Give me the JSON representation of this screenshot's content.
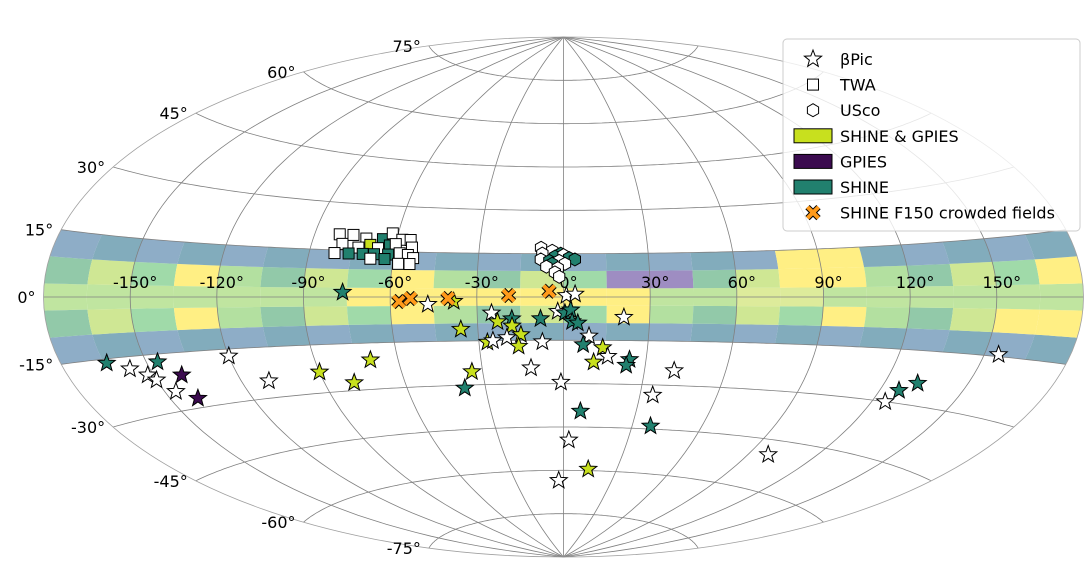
{
  "chart_data": {
    "type": "scatter",
    "projection": "aitoff-galactic",
    "galactic_plane_band_lat": [
      -15,
      15
    ],
    "band_colormap": "viridis (translucent)",
    "grid": true,
    "legend_position": "top-right",
    "longitude_ticks": [
      "-150°",
      "-120°",
      "-90°",
      "-60°",
      "-30°",
      "0°",
      "30°",
      "60°",
      "90°",
      "120°",
      "150°"
    ],
    "latitude_ticks": [
      "75°",
      "60°",
      "45°",
      "30°",
      "15°",
      "0°",
      "-15°",
      "-30°",
      "-45°",
      "-60°",
      "-75°"
    ],
    "colors": {
      "shine_gpies": "#c8e01e",
      "gpies": "#3b0b4f",
      "shine": "#21806e",
      "none": "#ffffff",
      "crowded": "#ff9a1a"
    },
    "legend": [
      {
        "label": "βPic",
        "marker": "star",
        "color": "none"
      },
      {
        "label": "TWA",
        "marker": "square",
        "color": "none"
      },
      {
        "label": "USco",
        "marker": "hexagon",
        "color": "none"
      },
      {
        "label": "SHINE & GPIES",
        "marker": "patch",
        "color": "shine_gpies"
      },
      {
        "label": "GPIES",
        "marker": "patch",
        "color": "gpies"
      },
      {
        "label": "SHINE",
        "marker": "patch",
        "color": "shine"
      },
      {
        "label": "SHINE F150 crowded fields",
        "marker": "x",
        "color": "crowded"
      }
    ],
    "series": [
      {
        "name": "βPic",
        "marker": "star",
        "points": [
          {
            "lon": -164,
            "lat": -16,
            "survey": "shine"
          },
          {
            "lon": -157,
            "lat": -18,
            "survey": "none"
          },
          {
            "lon": -152,
            "lat": -20,
            "survey": "none"
          },
          {
            "lon": -146,
            "lat": -17,
            "survey": "shine"
          },
          {
            "lon": -150,
            "lat": -21.5,
            "survey": "none"
          },
          {
            "lon": -140,
            "lat": -21,
            "survey": "gpies"
          },
          {
            "lon": -146,
            "lat": -25,
            "survey": "none"
          },
          {
            "lon": -140,
            "lat": -27.5,
            "survey": "gpies"
          },
          {
            "lon": -120,
            "lat": -17,
            "survey": "none"
          },
          {
            "lon": -110,
            "lat": -25,
            "survey": "none"
          },
          {
            "lon": -90,
            "lat": -23.5,
            "survey": "shine_gpies"
          },
          {
            "lon": -70,
            "lat": -20.5,
            "survey": "shine_gpies"
          },
          {
            "lon": -79,
            "lat": -27.5,
            "survey": "shine_gpies"
          },
          {
            "lon": -76.5,
            "lat": 1.5,
            "survey": "shine"
          },
          {
            "lon": -47,
            "lat": -2.5,
            "survey": "none"
          },
          {
            "lon": -38,
            "lat": -1.5,
            "survey": "shine_gpies"
          },
          {
            "lon": -36,
            "lat": -11,
            "survey": "shine_gpies"
          },
          {
            "lon": -25,
            "lat": -5.5,
            "survey": "none"
          },
          {
            "lon": -23,
            "lat": -8.5,
            "survey": "shine_gpies"
          },
          {
            "lon": -18,
            "lat": -7.5,
            "survey": "shine"
          },
          {
            "lon": -18,
            "lat": -10,
            "survey": "shine_gpies"
          },
          {
            "lon": -27,
            "lat": -15.5,
            "survey": "shine_gpies"
          },
          {
            "lon": -25,
            "lat": -15,
            "survey": "none"
          },
          {
            "lon": -20,
            "lat": -14,
            "survey": "none"
          },
          {
            "lon": -15,
            "lat": -13,
            "survey": "shine_gpies"
          },
          {
            "lon": -16,
            "lat": -17,
            "survey": "shine_gpies"
          },
          {
            "lon": -8,
            "lat": -7.5,
            "survey": "shine"
          },
          {
            "lon": -7.5,
            "lat": -15.5,
            "survey": "none"
          },
          {
            "lon": -2,
            "lat": -5,
            "survey": "none"
          },
          {
            "lon": 0.5,
            "lat": -5.5,
            "survey": "shine"
          },
          {
            "lon": 2.5,
            "lat": -4.5,
            "survey": "shine"
          },
          {
            "lon": 1,
            "lat": 0.5,
            "survey": "none"
          },
          {
            "lon": 4,
            "lat": 1,
            "survey": "none"
          },
          {
            "lon": 3,
            "lat": -8.5,
            "survey": "shine"
          },
          {
            "lon": 5,
            "lat": -9,
            "survey": "shine"
          },
          {
            "lon": 21,
            "lat": -7,
            "survey": "none"
          },
          {
            "lon": 9,
            "lat": -13.5,
            "survey": "none"
          },
          {
            "lon": 7,
            "lat": -16.5,
            "survey": "shine"
          },
          {
            "lon": 14,
            "lat": -17.5,
            "survey": "shine_gpies"
          },
          {
            "lon": 16,
            "lat": -20.5,
            "survey": "none"
          },
          {
            "lon": 11,
            "lat": -22.5,
            "survey": "shine_gpies"
          },
          {
            "lon": 24,
            "lat": -21.5,
            "survey": "shine"
          },
          {
            "lon": 23,
            "lat": -23.5,
            "survey": "shine"
          },
          {
            "lon": -34,
            "lat": -25.5,
            "survey": "shine_gpies"
          },
          {
            "lon": -38,
            "lat": -31,
            "survey": "shine"
          },
          {
            "lon": -12,
            "lat": -24.5,
            "survey": "none"
          },
          {
            "lon": -1,
            "lat": -29.5,
            "survey": "none"
          },
          {
            "lon": 41,
            "lat": -25,
            "survey": "none"
          },
          {
            "lon": 35,
            "lat": -33.5,
            "survey": "none"
          },
          {
            "lon": 7,
            "lat": -39.5,
            "survey": "shine"
          },
          {
            "lon": 38,
            "lat": -44,
            "survey": "shine"
          },
          {
            "lon": 2.5,
            "lat": -49.5,
            "survey": "none"
          },
          {
            "lon": 14,
            "lat": -59.5,
            "survey": "shine_gpies"
          },
          {
            "lon": -3,
            "lat": -63.5,
            "survey": "none"
          },
          {
            "lon": 99,
            "lat": -49.5,
            "survey": "none"
          },
          {
            "lon": 127,
            "lat": -26.5,
            "survey": "shine"
          },
          {
            "lon": 132,
            "lat": -24,
            "survey": "shine"
          },
          {
            "lon": 125,
            "lat": -30,
            "survey": "none"
          },
          {
            "lon": 155,
            "lat": -14.5,
            "survey": "none"
          }
        ]
      },
      {
        "name": "TWA",
        "marker": "square",
        "points": [
          {
            "lon": -81,
            "lat": 20,
            "survey": "none"
          },
          {
            "lon": -76,
            "lat": 20,
            "survey": "none"
          },
          {
            "lon": -71,
            "lat": 19,
            "survey": "none"
          },
          {
            "lon": -65,
            "lat": 19,
            "survey": "shine"
          },
          {
            "lon": -62,
            "lat": 21,
            "survey": "none"
          },
          {
            "lon": -58,
            "lat": 19,
            "survey": "none"
          },
          {
            "lon": -79,
            "lat": 17,
            "survey": "none"
          },
          {
            "lon": -73,
            "lat": 16,
            "survey": "none"
          },
          {
            "lon": -69,
            "lat": 17,
            "survey": "shine_gpies"
          },
          {
            "lon": -66,
            "lat": 16,
            "survey": "none"
          },
          {
            "lon": -62,
            "lat": 17,
            "survey": "shine"
          },
          {
            "lon": -60,
            "lat": 17.5,
            "survey": "none"
          },
          {
            "lon": -55,
            "lat": 19,
            "survey": "none"
          },
          {
            "lon": -54,
            "lat": 16.5,
            "survey": "none"
          },
          {
            "lon": -81,
            "lat": 14,
            "survey": "none"
          },
          {
            "lon": -76,
            "lat": 14,
            "survey": "shine"
          },
          {
            "lon": -71,
            "lat": 14,
            "survey": "shine"
          },
          {
            "lon": -67,
            "lat": 14,
            "survey": "shine"
          },
          {
            "lon": -62,
            "lat": 14,
            "survey": "shine"
          },
          {
            "lon": -58,
            "lat": 14.5,
            "survey": "none"
          },
          {
            "lon": -55,
            "lat": 14,
            "survey": "none"
          },
          {
            "lon": -53,
            "lat": 13,
            "survey": "none"
          },
          {
            "lon": -68,
            "lat": 12.5,
            "survey": "none"
          },
          {
            "lon": -63,
            "lat": 12.5,
            "survey": "shine"
          },
          {
            "lon": -58,
            "lat": 11,
            "survey": "none"
          },
          {
            "lon": -54,
            "lat": 11,
            "survey": "none"
          }
        ]
      },
      {
        "name": "USco",
        "marker": "hexagon",
        "points": [
          {
            "lon": -8,
            "lat": 17,
            "survey": "none"
          },
          {
            "lon": -4,
            "lat": 16,
            "survey": "none"
          },
          {
            "lon": -1,
            "lat": 15,
            "survey": "shine"
          },
          {
            "lon": -7.5,
            "lat": 15,
            "survey": "none"
          },
          {
            "lon": -3,
            "lat": 14,
            "survey": "shine"
          },
          {
            "lon": 0,
            "lat": 14.5,
            "survey": "none"
          },
          {
            "lon": 2,
            "lat": 13.5,
            "survey": "shine"
          },
          {
            "lon": 4,
            "lat": 13,
            "survey": "shine"
          },
          {
            "lon": -8,
            "lat": 13,
            "survey": "none"
          },
          {
            "lon": -5,
            "lat": 12.5,
            "survey": "shine"
          },
          {
            "lon": -1.5,
            "lat": 12.5,
            "survey": "none"
          },
          {
            "lon": -4,
            "lat": 11.5,
            "survey": "shine"
          },
          {
            "lon": 0.5,
            "lat": 11.5,
            "survey": "none"
          },
          {
            "lon": -6,
            "lat": 10.5,
            "survey": "none"
          },
          {
            "lon": -2,
            "lat": 10,
            "survey": "none"
          },
          {
            "lon": -3,
            "lat": 8.5,
            "survey": "none"
          },
          {
            "lon": -1.5,
            "lat": 7,
            "survey": "none"
          }
        ]
      },
      {
        "name": "SHINE F150 crowded fields",
        "marker": "x",
        "points": [
          {
            "lon": -57,
            "lat": -1.5,
            "survey": "crowded"
          },
          {
            "lon": -53,
            "lat": -0.5,
            "survey": "crowded"
          },
          {
            "lon": -40,
            "lat": -0.5,
            "survey": "crowded"
          },
          {
            "lon": -19,
            "lat": 0.5,
            "survey": "crowded"
          },
          {
            "lon": -5,
            "lat": 2,
            "survey": "crowded"
          }
        ]
      }
    ]
  }
}
